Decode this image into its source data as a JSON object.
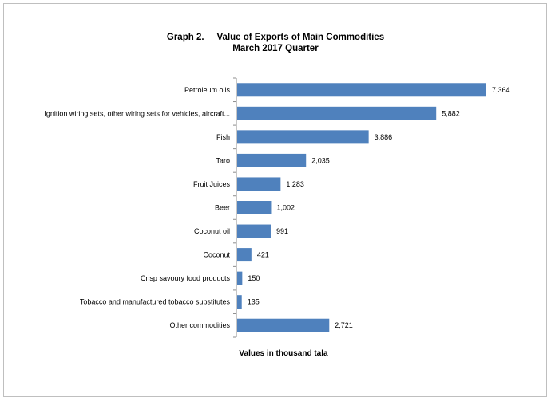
{
  "chart_data": {
    "type": "bar",
    "orientation": "horizontal",
    "title": "Graph 2.     Value of Exports of Main Commodities",
    "subtitle": "March 2017 Quarter",
    "xlabel": "Values in thousand tala",
    "ylabel": "",
    "categories": [
      "Petroleum oils",
      "Ignition wiring sets, other wiring sets for vehicles, aircraft...",
      "Fish",
      "Taro",
      "Fruit Juices",
      "Beer",
      "Coconut oil",
      "Coconut",
      "Crisp savoury food products",
      "Tobacco and manufactured tobacco substitutes",
      "Other commodities"
    ],
    "values": [
      7364,
      5882,
      3886,
      2035,
      1283,
      1002,
      991,
      421,
      150,
      135,
      2721
    ],
    "value_labels": [
      "7,364",
      "5,882",
      "3,886",
      "2,035",
      "1,283",
      "1,002",
      "991",
      "421",
      "150",
      "135",
      "2,721"
    ],
    "xlim": [
      0,
      8000
    ],
    "bar_color": "#4f81bd",
    "grid": false,
    "legend": "none"
  }
}
